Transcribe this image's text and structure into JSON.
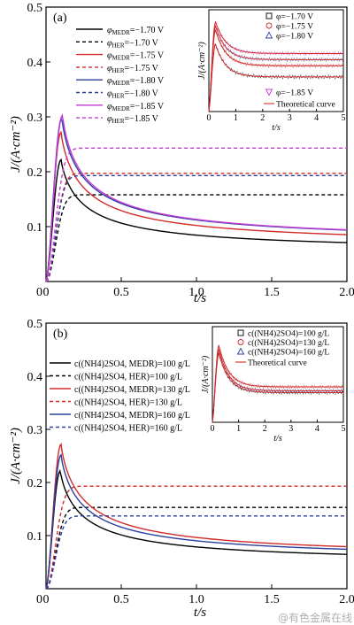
{
  "chart_data": [
    {
      "type": "line",
      "panel": "(a)",
      "xlabel": "t/s",
      "ylabel": "J/(A·cm⁻²)",
      "xlim": [
        0,
        2.0
      ],
      "ylim": [
        0,
        0.5
      ],
      "xticks": [
        0,
        0.5,
        1.0,
        1.5,
        2.0
      ],
      "xticklabels": [
        "0",
        "0.5",
        "1.0",
        "1.5",
        "2.0"
      ],
      "yticks": [
        0.1,
        0.2,
        0.3,
        0.4,
        0.5
      ],
      "yticklabels": [
        "0.1",
        "0.2",
        "0.3",
        "0.4",
        "0.5"
      ],
      "legend_position": "top-left",
      "series": [
        {
          "name": "φMEDR=−1.70 V",
          "name_sym": "φ",
          "name_sub": "MEDR",
          "name_rest": "=−1.70 V",
          "style": "solid",
          "color": "#000000",
          "tm": 0.1,
          "jm": 0.222,
          "jinf": 0.052
        },
        {
          "name": "φHER=−1.70 V",
          "name_sym": "φ",
          "name_sub": "HER",
          "name_rest": "=−1.70 V",
          "style": "dashed",
          "color": "#000000",
          "plateau": 0.158
        },
        {
          "name": "φMEDR=−1.75 V",
          "name_sym": "φ",
          "name_sub": "MEDR",
          "name_rest": "=−1.75 V",
          "style": "solid",
          "color": "#d22a2a",
          "tm": 0.1,
          "jm": 0.272,
          "jinf": 0.062
        },
        {
          "name": "φHER=−1.75 V",
          "name_sym": "φ",
          "name_sub": "HER",
          "name_rest": "=−1.75 V",
          "style": "dashed",
          "color": "#d22a2a",
          "plateau": 0.197
        },
        {
          "name": "φMEDR=−1.80 V",
          "name_sym": "φ",
          "name_sub": "MEDR",
          "name_rest": "=−1.80 V",
          "style": "solid",
          "color": "#2c3fa0",
          "tm": 0.105,
          "jm": 0.298,
          "jinf": 0.068
        },
        {
          "name": "φHER=−1.80 V",
          "name_sym": "φ",
          "name_sub": "HER",
          "name_rest": "=−1.80 V",
          "style": "dashed",
          "color": "#2c3fa0",
          "plateau": 0.193
        },
        {
          "name": "φMEDR=−1.85 V",
          "name_sym": "φ",
          "name_sub": "MEDR",
          "name_rest": "=−1.85 V",
          "style": "solid",
          "color": "#c23bd4",
          "tm": 0.11,
          "jm": 0.303,
          "jinf": 0.068
        },
        {
          "name": "φHER=−1.85 V",
          "name_sym": "φ",
          "name_sub": "HER",
          "name_rest": "=−1.85 V",
          "style": "dashed",
          "color": "#c23bd4",
          "plateau": 0.243
        }
      ],
      "inset": {
        "xlabel": "t/s",
        "ylabel": "J/(A·cm⁻²)",
        "xlim": [
          0,
          5
        ],
        "xticks": [
          0,
          1,
          2,
          3,
          4,
          5
        ],
        "xticklabels": [
          "0",
          "1",
          "2",
          "3",
          "4",
          "5"
        ],
        "legend": [
          {
            "label": "φ=−1.70 V",
            "marker": "square",
            "color": "#000000"
          },
          {
            "label": "φ=−1.75 V",
            "marker": "circle",
            "color": "#d22a2a"
          },
          {
            "label": "φ=−1.80 V",
            "marker": "triangle",
            "color": "#2c3fa0"
          },
          {
            "label": "φ=−1.85 V",
            "marker": "triangle-down",
            "color": "#c23bd4"
          },
          {
            "label": "Theoretical curve",
            "marker": "line",
            "color": "#d22a2a"
          }
        ],
        "curves": [
          {
            "tm": 0.25,
            "jm": 0.33,
            "jinf": 0.17,
            "decay": 1.4,
            "color": "#000000"
          },
          {
            "tm": 0.25,
            "jm": 0.4,
            "jinf": 0.225,
            "decay": 1.4,
            "color": "#d22a2a"
          },
          {
            "tm": 0.25,
            "jm": 0.42,
            "jinf": 0.255,
            "decay": 1.4,
            "color": "#2c3fa0"
          },
          {
            "tm": 0.25,
            "jm": 0.44,
            "jinf": 0.285,
            "decay": 1.4,
            "color": "#c23bd4"
          }
        ],
        "ylim": [
          0,
          0.5
        ]
      }
    },
    {
      "type": "line",
      "panel": "(b)",
      "xlabel": "t/s",
      "ylabel": "J/(A·cm⁻²)",
      "xlim": [
        0,
        2.0
      ],
      "ylim": [
        0,
        0.5
      ],
      "xticks": [
        0,
        0.5,
        1.0,
        1.5,
        2.0
      ],
      "xticklabels": [
        "0",
        "0.5",
        "1.0",
        "1.5",
        "2.0"
      ],
      "yticks": [
        0.1,
        0.2,
        0.3,
        0.4,
        0.5
      ],
      "yticklabels": [
        "0.1",
        "0.2",
        "0.3",
        "0.4",
        "0.5"
      ],
      "legend_position": "top-left",
      "series": [
        {
          "name": "c((NH4)2SO4, MEDR)=100 g/L",
          "style": "solid",
          "color": "#000000",
          "tm": 0.095,
          "jm": 0.222,
          "jinf": 0.045
        },
        {
          "name": "c((NH4)2SO4, HER)=100 g/L",
          "style": "dashed",
          "color": "#000000",
          "plateau": 0.153
        },
        {
          "name": "c((NH4)2SO4, MEDR)=130 g/L",
          "style": "solid",
          "color": "#d22a2a",
          "tm": 0.1,
          "jm": 0.272,
          "jinf": 0.055
        },
        {
          "name": "c((NH4)2SO4, HER)=130 g/L",
          "style": "dashed",
          "color": "#d22a2a",
          "plateau": 0.193
        },
        {
          "name": "c((NH4)2SO4, MEDR)=160 g/L",
          "style": "solid",
          "color": "#2c3fa0",
          "tm": 0.1,
          "jm": 0.252,
          "jinf": 0.052
        },
        {
          "name": "c((NH4)2SO4, HER)=160 g/L",
          "style": "dashed",
          "color": "#2c3fa0",
          "plateau": 0.137
        }
      ],
      "inset": {
        "xlabel": "t/s",
        "ylabel": "J/(A·cm⁻²)",
        "xlim": [
          0,
          5
        ],
        "xticks": [
          0,
          1,
          2,
          3,
          4,
          5
        ],
        "xticklabels": [
          "0",
          "1",
          "2",
          "3",
          "4",
          "5"
        ],
        "legend": [
          {
            "label": "c((NH4)2SO4)=100 g/L",
            "marker": "square",
            "color": "#000000"
          },
          {
            "label": "c((NH4)2SO4)=130 g/L",
            "marker": "circle",
            "color": "#d22a2a"
          },
          {
            "label": "c((NH4)2SO4)=160 g/L",
            "marker": "triangle",
            "color": "#2c3fa0"
          },
          {
            "label": "Theoretical curve",
            "marker": "line",
            "color": "#d22a2a"
          }
        ],
        "curves": [
          {
            "tm": 0.25,
            "jm": 0.36,
            "jinf": 0.155,
            "decay": 1.4,
            "color": "#000000"
          },
          {
            "tm": 0.25,
            "jm": 0.4,
            "jinf": 0.185,
            "decay": 1.4,
            "color": "#d22a2a"
          },
          {
            "tm": 0.25,
            "jm": 0.38,
            "jinf": 0.165,
            "decay": 1.4,
            "color": "#2c3fa0"
          }
        ],
        "ylim": [
          0,
          0.5
        ]
      }
    }
  ],
  "watermark": "@有色金属在线"
}
